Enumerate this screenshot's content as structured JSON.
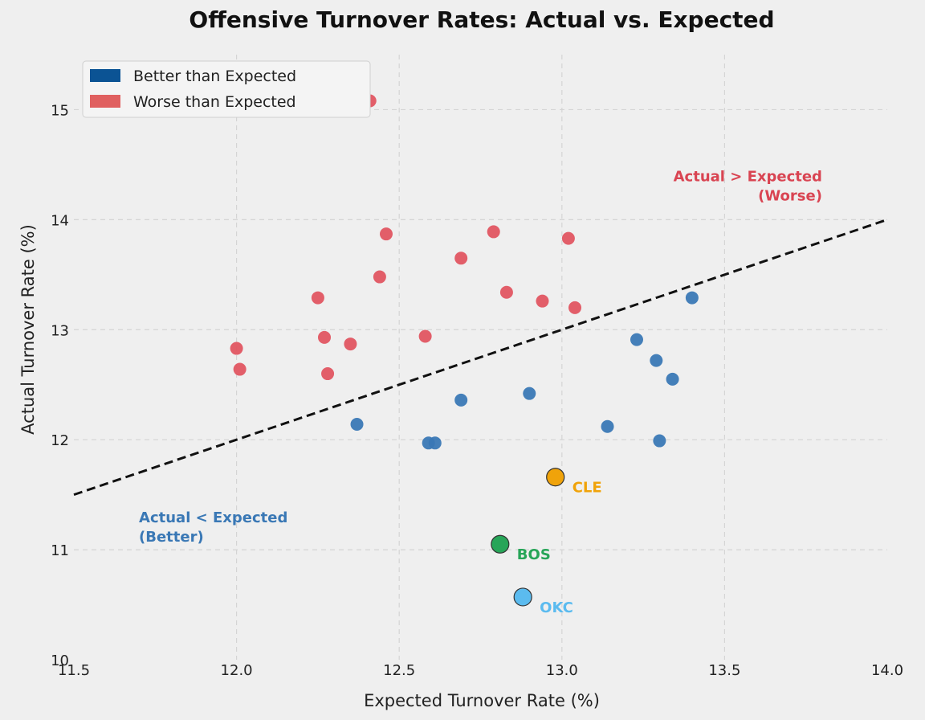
{
  "chart_data": {
    "type": "scatter",
    "title": "Offensive Turnover Rates: Actual vs. Expected",
    "xlabel": "Expected Turnover Rate (%)",
    "ylabel": "Actual Turnover Rate (%)",
    "xlim": [
      11.5,
      14.0
    ],
    "ylim": [
      10,
      15.5
    ],
    "x_ticks": [
      "11.5",
      "12.0",
      "12.5",
      "13.0",
      "13.5",
      "14.0"
    ],
    "y_ticks": [
      "10",
      "11",
      "12",
      "13",
      "14",
      "15"
    ],
    "grid": true,
    "legend_position": "top-left",
    "legend": [
      {
        "label": "Better than Expected",
        "color": "#0b5394"
      },
      {
        "label": "Worse than Expected",
        "color": "#e06060"
      }
    ],
    "reference_line": {
      "style": "dashed",
      "color": "#111111",
      "from": [
        11.5,
        11.5
      ],
      "to": [
        14.0,
        14.0
      ]
    },
    "annotations": [
      {
        "text_lines": [
          "Actual > Expected",
          "(Worse)"
        ],
        "x": 13.8,
        "y": 14.35,
        "align": "end",
        "color": "#d94452"
      },
      {
        "text_lines": [
          "Actual < Expected",
          "(Better)"
        ],
        "x": 11.7,
        "y": 11.25,
        "align": "start",
        "color": "#3a78b5"
      }
    ],
    "series": [
      {
        "name": "Better than Expected",
        "color": "#3a78b5",
        "points": [
          {
            "x": 12.37,
            "y": 12.14
          },
          {
            "x": 12.59,
            "y": 11.97
          },
          {
            "x": 12.61,
            "y": 11.97
          },
          {
            "x": 12.69,
            "y": 12.36
          },
          {
            "x": 12.9,
            "y": 12.42
          },
          {
            "x": 13.14,
            "y": 12.12
          },
          {
            "x": 13.23,
            "y": 12.91
          },
          {
            "x": 13.29,
            "y": 12.72
          },
          {
            "x": 13.3,
            "y": 11.99
          },
          {
            "x": 13.34,
            "y": 12.55
          },
          {
            "x": 13.4,
            "y": 13.29
          }
        ]
      },
      {
        "name": "Worse than Expected",
        "color": "#e05561",
        "points": [
          {
            "x": 12.0,
            "y": 12.83
          },
          {
            "x": 12.01,
            "y": 12.64
          },
          {
            "x": 12.25,
            "y": 13.29
          },
          {
            "x": 12.27,
            "y": 12.93
          },
          {
            "x": 12.28,
            "y": 12.6
          },
          {
            "x": 12.35,
            "y": 12.87
          },
          {
            "x": 12.41,
            "y": 15.08
          },
          {
            "x": 12.44,
            "y": 13.48
          },
          {
            "x": 12.46,
            "y": 13.87
          },
          {
            "x": 12.58,
            "y": 12.94
          },
          {
            "x": 12.69,
            "y": 13.65
          },
          {
            "x": 12.79,
            "y": 13.89
          },
          {
            "x": 12.83,
            "y": 13.34
          },
          {
            "x": 12.94,
            "y": 13.26
          },
          {
            "x": 13.02,
            "y": 13.83
          },
          {
            "x": 13.04,
            "y": 13.2
          }
        ]
      }
    ],
    "highlighted_teams": [
      {
        "label": "CLE",
        "x": 12.98,
        "y": 11.66,
        "color": "#f0a30a"
      },
      {
        "label": "BOS",
        "x": 12.81,
        "y": 11.05,
        "color": "#27a558"
      },
      {
        "label": "OKC",
        "x": 12.88,
        "y": 10.57,
        "color": "#5bbbef"
      }
    ]
  }
}
